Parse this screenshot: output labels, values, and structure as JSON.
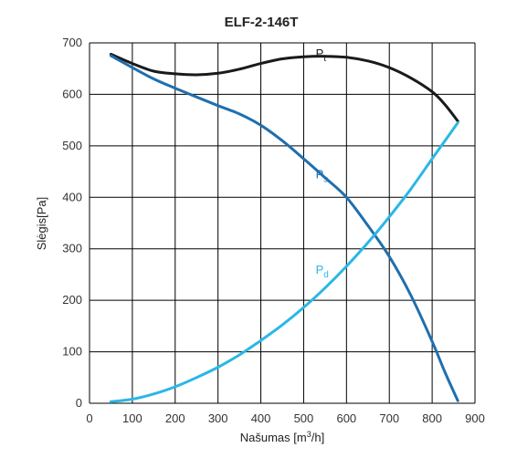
{
  "chart_data": {
    "type": "line",
    "title": "ELF-2-146T",
    "xlabel": "Našumas",
    "xlabel_unit_prefix": "[m",
    "xlabel_unit_sup": "3",
    "xlabel_unit_suffix": "/h]",
    "ylabel": "Slėgis",
    "ylabel_unit": "[Pa]",
    "xlim": [
      0,
      900
    ],
    "ylim": [
      0,
      700
    ],
    "x_ticks": [
      0,
      100,
      200,
      300,
      400,
      500,
      600,
      700,
      800,
      900
    ],
    "y_ticks": [
      0,
      100,
      200,
      300,
      400,
      500,
      600,
      700
    ],
    "grid": true,
    "series": [
      {
        "name": "P",
        "subscript": "t",
        "color": "#1a1a1a",
        "label_at": [
          528,
          672
        ],
        "points": [
          [
            50,
            678
          ],
          [
            100,
            660
          ],
          [
            150,
            645
          ],
          [
            200,
            640
          ],
          [
            250,
            638
          ],
          [
            300,
            641
          ],
          [
            350,
            649
          ],
          [
            400,
            660
          ],
          [
            450,
            669
          ],
          [
            500,
            673
          ],
          [
            550,
            674
          ],
          [
            600,
            672
          ],
          [
            650,
            665
          ],
          [
            700,
            652
          ],
          [
            750,
            632
          ],
          [
            800,
            605
          ],
          [
            830,
            580
          ],
          [
            860,
            548
          ]
        ]
      },
      {
        "name": "P",
        "subscript": "s",
        "color": "#1f6fae",
        "label_at": [
          528,
          437
        ],
        "points": [
          [
            50,
            675
          ],
          [
            100,
            652
          ],
          [
            150,
            630
          ],
          [
            200,
            612
          ],
          [
            250,
            595
          ],
          [
            300,
            578
          ],
          [
            350,
            562
          ],
          [
            400,
            540
          ],
          [
            450,
            510
          ],
          [
            500,
            475
          ],
          [
            550,
            438
          ],
          [
            600,
            400
          ],
          [
            650,
            345
          ],
          [
            700,
            285
          ],
          [
            750,
            210
          ],
          [
            800,
            120
          ],
          [
            830,
            60
          ],
          [
            860,
            5
          ]
        ]
      },
      {
        "name": "P",
        "subscript": "d",
        "color": "#2bb7e6",
        "label_at": [
          528,
          252
        ],
        "points": [
          [
            50,
            3
          ],
          [
            100,
            8
          ],
          [
            150,
            18
          ],
          [
            200,
            32
          ],
          [
            250,
            50
          ],
          [
            300,
            70
          ],
          [
            350,
            94
          ],
          [
            400,
            122
          ],
          [
            450,
            152
          ],
          [
            500,
            186
          ],
          [
            550,
            224
          ],
          [
            600,
            266
          ],
          [
            650,
            312
          ],
          [
            700,
            362
          ],
          [
            750,
            416
          ],
          [
            800,
            475
          ],
          [
            830,
            510
          ],
          [
            860,
            545
          ]
        ]
      }
    ]
  }
}
